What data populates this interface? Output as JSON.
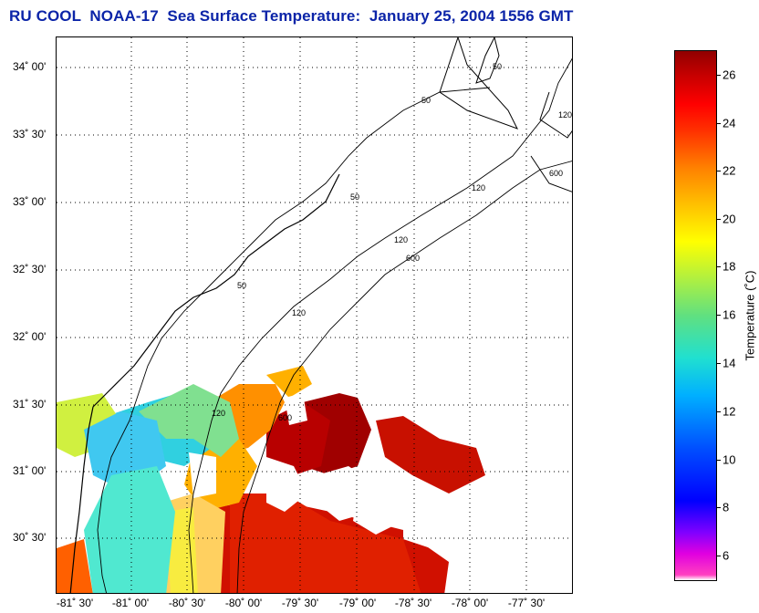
{
  "title": "RU COOL  NOAA-17  Sea Surface Temperature:  January 25, 2004 1556 GMT",
  "lat_labels": [
    "34˚ 00'",
    "33˚ 30'",
    "33˚ 00'",
    "32˚ 30'",
    "32˚ 00'",
    "31˚ 30'",
    "31˚ 00'",
    "30˚ 30'"
  ],
  "lon_labels": [
    "-81˚ 30'",
    "-81˚ 00'",
    "-80˚ 30'",
    "-80˚ 00'",
    "-79˚ 30'",
    "-79˚ 00'",
    "-78˚ 30'",
    "-78˚ 00'",
    "-77˚ 30'"
  ],
  "colorbar": {
    "label": "Temperature (˚C)",
    "ticks": [
      "26",
      "24",
      "22",
      "20",
      "18",
      "16",
      "14",
      "12",
      "10",
      "8",
      "6"
    ],
    "min": 5,
    "max": 27
  },
  "contours": {
    "isobath_50": "50",
    "isobath_120": "120",
    "isobath_600": "600"
  }
}
